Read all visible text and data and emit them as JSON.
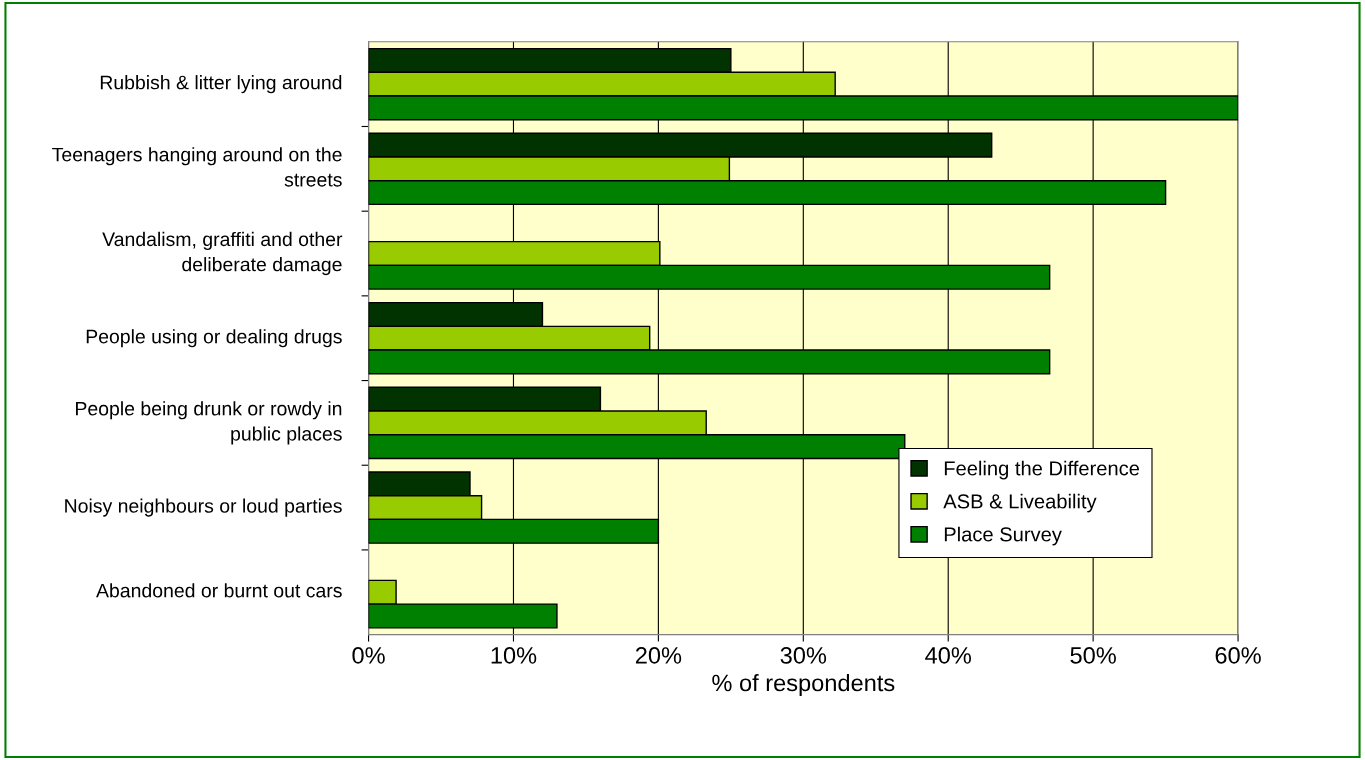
{
  "chart_data": {
    "type": "bar",
    "orientation": "horizontal",
    "xlabel": "% of respondents",
    "categories": [
      "Rubbish & litter lying around",
      "Teenagers hanging around on the streets",
      "Vandalism, graffiti and other deliberate damage",
      "People using or dealing drugs",
      "People being drunk or rowdy in public places",
      "Noisy neighbours or loud parties",
      "Abandoned or burnt out cars"
    ],
    "series": [
      {
        "name": "Feeling the Difference",
        "color": "#003300",
        "values": [
          25,
          43,
          null,
          12,
          16,
          7,
          null
        ]
      },
      {
        "name": "ASB & Liveability",
        "color": "#99cc00",
        "values": [
          32.2,
          24.9,
          20.1,
          19.4,
          23.3,
          7.8,
          1.9
        ]
      },
      {
        "name": "Place Survey",
        "color": "#008000",
        "values": [
          60,
          55,
          47,
          47,
          37,
          20,
          13
        ]
      }
    ],
    "xlim": [
      0,
      60
    ],
    "xticks": [
      {
        "value": 0,
        "label": "0%"
      },
      {
        "value": 10,
        "label": "10%"
      },
      {
        "value": 20,
        "label": "20%"
      },
      {
        "value": 30,
        "label": "30%"
      },
      {
        "value": 40,
        "label": "40%"
      },
      {
        "value": 50,
        "label": "50%"
      },
      {
        "value": 60,
        "label": "60%"
      }
    ],
    "grid": "x",
    "legend": "bottom right"
  }
}
